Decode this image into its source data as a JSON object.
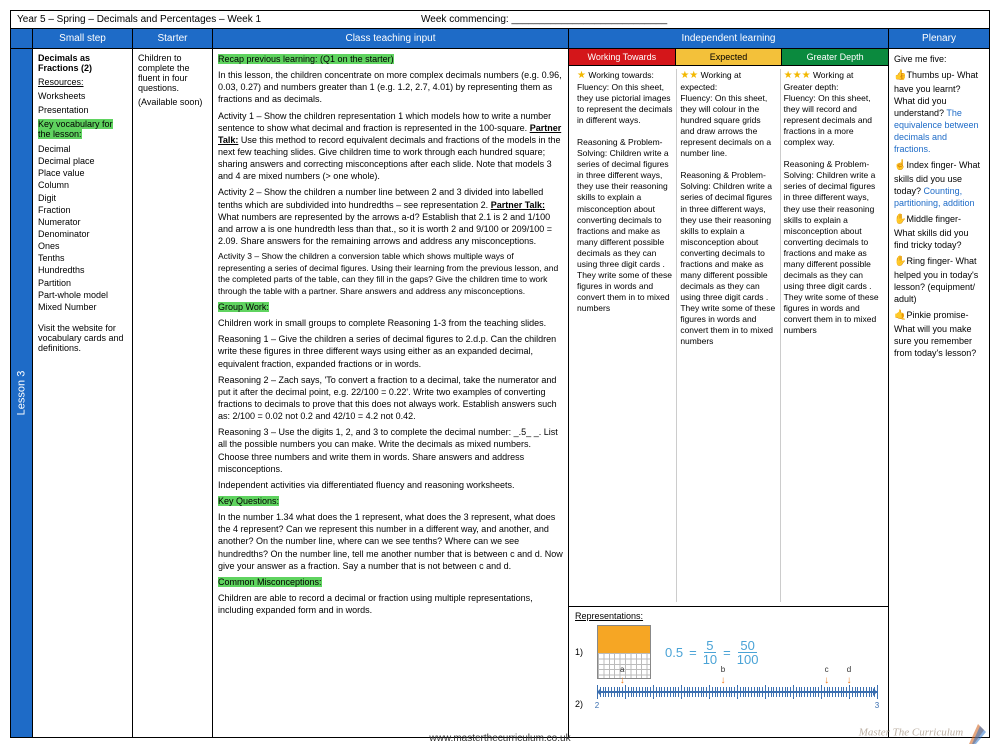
{
  "title": {
    "left": "Year 5 – Spring – Decimals and Percentages – Week 1",
    "right": "Week commencing: ____________________________"
  },
  "headers": {
    "smallstep": "Small step",
    "starter": "Starter",
    "input": "Class teaching input",
    "indep": "Independent learning",
    "plenary": "Plenary"
  },
  "lesson_tab": "Lesson 3",
  "smallstep": {
    "title": "Decimals as Fractions (2)",
    "res_h": "Resources:",
    "res1": "Worksheets",
    "res2": "Presentation",
    "vocab_h": "Key vocabulary for the lesson:",
    "vocab": [
      "Decimal",
      "Decimal place",
      "Place value",
      "Column",
      "Digit",
      "Fraction",
      "Numerator",
      "Denominator",
      "Ones",
      "Tenths",
      "Hundredths",
      "Partition",
      "Part-whole model",
      "Mixed Number"
    ],
    "note": "Visit the website for vocabulary cards and definitions."
  },
  "starter": {
    "p1": "Children to complete the fluent in four questions.",
    "p2": "(Available soon)"
  },
  "input": {
    "recap": "Recap previous learning: (Q1 on the starter)",
    "intro": "In this lesson, the children concentrate on more complex decimals numbers (e.g. 0.96, 0.03, 0.27) and numbers greater than 1 (e.g. 1.2, 2.7, 4.01) by representing them as fractions and as decimals.",
    "a1": "Activity 1 – Show the children representation 1 which models how to write a number sentence to show what decimal and fraction is represented in the 100-square. ",
    "a1b": " Use this method to record equivalent decimals and fractions of the models in the next few teaching slides. Give children time to work through each hundred square; sharing answers and correcting misconceptions after each slide. Note that models 3 and 4 are mixed numbers (> one whole).",
    "a2": "Activity 2 – Show the children a number line between 2 and 3 divided into labelled tenths which are subdivided into hundredths – see representation 2. ",
    "a2b": " What numbers are represented by the arrows a-d? Establish that 2.1 is 2 and 1/100 and arrow a is one hundredth less than that., so it is worth 2 and 9/100 or 209/100 = 2.09. Share answers for the remaining arrows and address any misconceptions.",
    "a3": "Activity 3 – Show the children a conversion table which shows multiple ways of representing a series of decimal figures. Using their learning from the previous lesson, and the completed parts of the table, can they fill in the gaps? Give the children time to work through the table with a partner. Share answers and address any misconceptions.",
    "gw_h": "Group Work:",
    "gw1": "Children work in small groups to complete Reasoning 1-3 from the teaching slides.",
    "r1": "Reasoning 1 – Give the children a series of decimal figures to 2.d.p. Can the children write these figures in three different ways using either as an expanded  decimal, equivalent fraction, expanded fractions or in words.",
    "r2": "Reasoning 2 – Zach says, 'To convert a fraction to a decimal, take the numerator and put it after the decimal point, e.g. 22/100 = 0.22'. Write two examples of converting fractions to decimals to prove that this does not always work. Establish answers such as: 2/100 = 0.02 not 0.2 and 42/10 = 4.2 not 0.42.",
    "r3": "Reasoning 3 – Use the digits 1, 2, and 3 to complete the decimal number: _.5_ _. List all the possible numbers you can make. Write the decimals as mixed numbers. Choose three numbers and write them in words. Share answers and address misconceptions.",
    "indact": "Independent activities via differentiated fluency and reasoning worksheets.",
    "kq_h": "Key Questions:",
    "kq": "In the number 1.34 what does the 1 represent, what does the 3 represent, what does the 4 represent? Can we represent this number in a different way, and another, and another? On the number line, where can we see tenths? Where can we see hundredths? On the number line, tell me another number that is between c and d. Now give your answer as a fraction. Say a number that is not between c and d.",
    "cm_h": "Common Misconceptions:",
    "cm": "Children are able to record a decimal or fraction using multiple representations, including expanded form and in words.",
    "ptalk": "Partner Talk:"
  },
  "indep": {
    "h": {
      "wt": "Working Towards",
      "ex": "Expected",
      "gd": "Greater Depth"
    },
    "wt": {
      "lead": "Working towards:",
      "fl": "Fluency: On this sheet, they use pictorial images to represent the decimals in different ways.",
      "rp": "Reasoning & Problem-Solving: Children write a series of decimal figures in three different ways, they use their reasoning skills to explain a misconception about converting decimals to fractions and make as many different possible decimals as they can using three digit cards . They write some of these figures in words and convert them in to mixed numbers"
    },
    "ex": {
      "lead": "Working at expected:",
      "fl": "Fluency: On this sheet, they will colour in the hundred square grids and draw arrows the represent decimals on a number line.",
      "rp": "Reasoning & Problem-Solving: Children write a series of decimal figures in three different ways, they use their reasoning skills to explain a misconception about converting decimals to fractions and make as many different possible decimals as they can using three digit cards . They write some of these figures in words and convert them in to mixed numbers"
    },
    "gd": {
      "lead": "Working at Greater depth:",
      "fl": "Fluency: On this sheet, they will record and represent decimals and fractions in a more complex way.",
      "rp": "Reasoning & Problem-Solving: Children write a series of decimal figures in three different ways, they use their reasoning skills to explain a misconception about converting decimals to fractions and make as many different possible decimals as they can using three digit cards . They write some of these figures in words and convert them in to mixed numbers"
    },
    "rep_h": "Representations:",
    "eq": {
      "lhs": "0.5",
      "n1": "5",
      "d1": "10",
      "n2": "50",
      "d2": "100"
    },
    "nl": {
      "start": "2",
      "end": "3",
      "labels": [
        "a",
        "b",
        "c",
        "d"
      ]
    }
  },
  "plenary": {
    "lead": "Give me five:",
    "l1": "Thumbs up- What have you learnt? What did you understand?",
    "a1": "The equivalence between decimals and fractions.",
    "l2": "Index finger- What skills did you use today?",
    "a2": "Counting, partitioning, addition",
    "l3": "Middle finger- What skills did you find tricky today?",
    "l4": "Ring finger- What helped you in today's lesson? (equipment/ adult)",
    "l5": "Pinkie promise- What will you make sure you remember from today's lesson?"
  },
  "footer": {
    "url": "www.masterthecurriculum.co.uk",
    "brand": "Master The Curriculum"
  }
}
